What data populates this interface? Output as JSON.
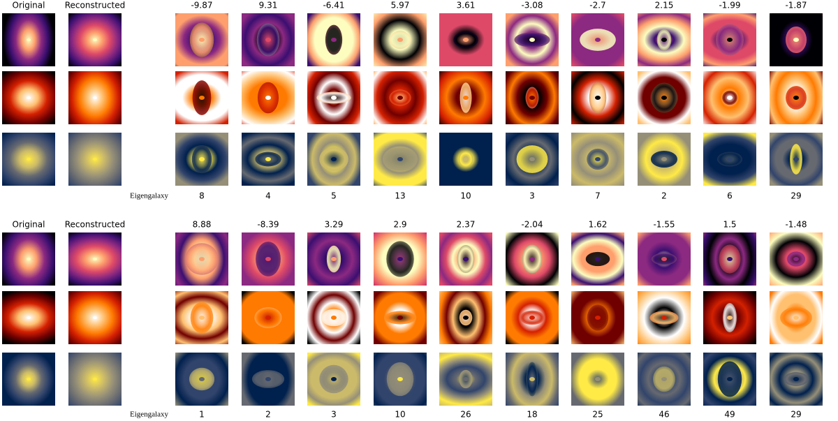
{
  "panels": [
    {
      "original_label": "Original",
      "reconstructed_label": "Reconstructed",
      "coefficients": [
        -9.87,
        9.31,
        -6.41,
        5.97,
        3.61,
        -3.08,
        -2.7,
        2.15,
        -1.99,
        -1.87
      ],
      "axis_label": "Eigengalaxy",
      "eigengalaxy_numbers": [
        8,
        4,
        5,
        13,
        10,
        3,
        7,
        2,
        6,
        29
      ]
    },
    {
      "original_label": "Original",
      "reconstructed_label": "Reconstructed",
      "coefficients": [
        8.88,
        -8.39,
        3.29,
        2.9,
        2.37,
        -2.04,
        1.62,
        -1.55,
        1.5,
        -1.48
      ],
      "axis_label": "Eigengalaxy",
      "eigengalaxy_numbers": [
        1,
        2,
        3,
        10,
        26,
        18,
        25,
        46,
        49,
        29
      ]
    }
  ]
}
